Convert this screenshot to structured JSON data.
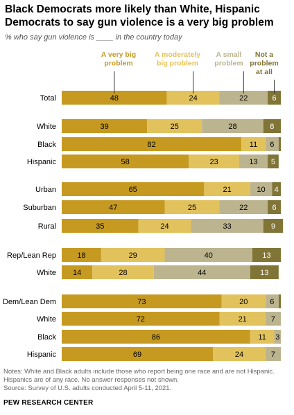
{
  "title": "Black Democrats more likely than White, Hispanic Democrats to say gun violence is a very big problem",
  "subtitle": "% who say gun violence is ____ in the country today",
  "notes": "Notes: White and Black adults include those who report being one race and are not Hispanic. Hispanics are of any race. No answer responses not shown.",
  "source": "Source: Survey of U.S. adults conducted April 5-11, 2021.",
  "org": "PEW RESEARCH CENTER",
  "colors": [
    "#c69a21",
    "#e2c25d",
    "#bcb48f",
    "#807536"
  ],
  "chart_data": {
    "type": "bar",
    "orientation": "horizontal",
    "stacked": true,
    "legend_placement": "top",
    "series": [
      {
        "name": "A very big problem"
      },
      {
        "name": "A moderately big problem"
      },
      {
        "name": "A small problem"
      },
      {
        "name": "Not a problem at all"
      }
    ],
    "rows": [
      {
        "label": "Total",
        "values": [
          48,
          24,
          22,
          6
        ],
        "group": 0
      },
      {
        "label": "White",
        "values": [
          39,
          25,
          28,
          8
        ],
        "group": 1
      },
      {
        "label": "Black",
        "values": [
          82,
          11,
          6,
          1
        ],
        "labels": [
          "82",
          "11",
          "6",
          ""
        ],
        "group": 1
      },
      {
        "label": "Hispanic",
        "values": [
          58,
          23,
          13,
          5
        ],
        "group": 1
      },
      {
        "label": "Urban",
        "values": [
          65,
          21,
          10,
          4
        ],
        "group": 2
      },
      {
        "label": "Suburban",
        "values": [
          47,
          25,
          22,
          6
        ],
        "group": 2
      },
      {
        "label": "Rural",
        "values": [
          35,
          24,
          33,
          9
        ],
        "group": 2
      },
      {
        "label": "Rep/Lean Rep",
        "values": [
          18,
          29,
          40,
          13
        ],
        "group": 3
      },
      {
        "label": "White",
        "values": [
          14,
          28,
          44,
          13
        ],
        "group": 3
      },
      {
        "label": "Dem/Lean Dem",
        "values": [
          73,
          20,
          6,
          1
        ],
        "labels": [
          "73",
          "20",
          "6",
          ""
        ],
        "group": 4
      },
      {
        "label": "White",
        "values": [
          72,
          21,
          7,
          0
        ],
        "labels": [
          "72",
          "21",
          "7",
          ""
        ],
        "group": 4
      },
      {
        "label": "Black",
        "values": [
          86,
          11,
          3,
          0
        ],
        "labels": [
          "86",
          "11",
          "3",
          ""
        ],
        "group": 4
      },
      {
        "label": "Hispanic",
        "values": [
          69,
          24,
          7,
          0
        ],
        "labels": [
          "69",
          "24",
          "7",
          ""
        ],
        "group": 4
      }
    ]
  }
}
